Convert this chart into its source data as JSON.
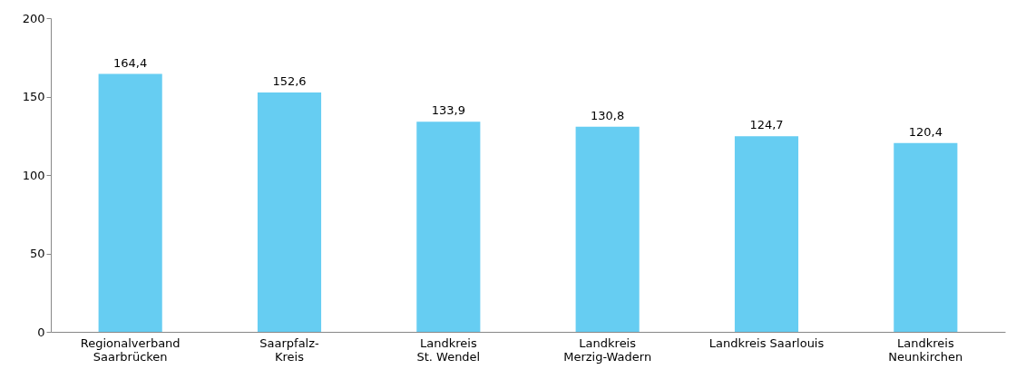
{
  "chart_data": {
    "type": "bar",
    "categories": [
      "Regionalverband\nSaarbrücken",
      "Saarpfalz-\nKreis",
      "Landkreis\nSt. Wendel",
      "Landkreis\nMerzig-Wadern",
      "Landkreis Saarlouis",
      "Landkreis\nNeunkirchen"
    ],
    "values": [
      164.4,
      152.6,
      133.9,
      130.8,
      124.7,
      120.4
    ],
    "value_labels": [
      "164,4",
      "152,6",
      "133,9",
      "130,8",
      "124,7",
      "120,4"
    ],
    "color": "#66cdf2",
    "ylim": [
      0,
      200
    ],
    "yticks": [
      0,
      50,
      100,
      150,
      200
    ],
    "grid": false
  }
}
